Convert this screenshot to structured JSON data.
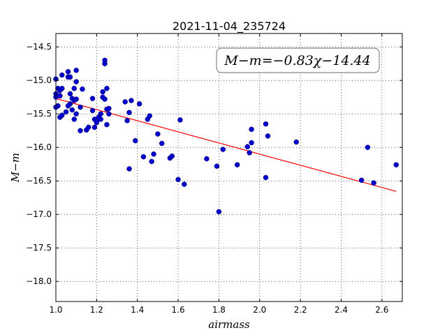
{
  "chart_data": {
    "type": "scatter",
    "title": "2021-11-04_235724",
    "xlabel": "airmass",
    "ylabel": "M−m",
    "xlim": [
      1.0,
      2.7
    ],
    "ylim": [
      -18.3,
      -14.3
    ],
    "y_inverted": true,
    "grid": true,
    "x_ticks": [
      1.0,
      1.2,
      1.4,
      1.6,
      1.8,
      2.0,
      2.2,
      2.4,
      2.6
    ],
    "x_tick_labels": [
      "1.0",
      "1.2",
      "1.4",
      "1.6",
      "1.8",
      "2.0",
      "2.2",
      "2.4",
      "2.6"
    ],
    "y_ticks": [
      -14.5,
      -15.0,
      -15.5,
      -16.0,
      -16.5,
      -17.0,
      -17.5,
      -18.0
    ],
    "y_tick_labels": [
      "−14.5",
      "−15.0",
      "−15.5",
      "−16.0",
      "−16.5",
      "−17.0",
      "−17.5",
      "−18.0"
    ],
    "annotation": "M−m=−0.83χ−14.44",
    "fit_line": {
      "slope": -0.83,
      "intercept": -14.44,
      "x_range": [
        1.0,
        2.67
      ],
      "color": "#ff0000"
    },
    "point_color": "#0000cc",
    "points": [
      [
        1.0,
        -14.98
      ],
      [
        1.01,
        -15.12
      ],
      [
        1.0,
        -15.2
      ],
      [
        1.0,
        -15.25
      ],
      [
        1.01,
        -15.38
      ],
      [
        1.0,
        -15.4
      ],
      [
        1.02,
        -15.15
      ],
      [
        1.03,
        -15.12
      ],
      [
        1.02,
        -15.23
      ],
      [
        1.03,
        -15.52
      ],
      [
        1.02,
        -15.55
      ],
      [
        1.03,
        -14.92
      ],
      [
        1.06,
        -14.87
      ],
      [
        1.06,
        -14.95
      ],
      [
        1.07,
        -14.95
      ],
      [
        1.07,
        -15.2
      ],
      [
        1.08,
        -15.27
      ],
      [
        1.09,
        -15.3
      ],
      [
        1.07,
        -15.35
      ],
      [
        1.06,
        -15.38
      ],
      [
        1.05,
        -15.47
      ],
      [
        1.08,
        -15.44
      ],
      [
        1.09,
        -15.58
      ],
      [
        1.09,
        -15.12
      ],
      [
        1.1,
        -14.85
      ],
      [
        1.1,
        -15.02
      ],
      [
        1.1,
        -15.28
      ],
      [
        1.1,
        -15.5
      ],
      [
        1.12,
        -15.4
      ],
      [
        1.13,
        -15.13
      ],
      [
        1.12,
        -15.75
      ],
      [
        1.15,
        -15.74
      ],
      [
        1.16,
        -15.7
      ],
      [
        1.18,
        -15.45
      ],
      [
        1.18,
        -15.27
      ],
      [
        1.19,
        -15.58
      ],
      [
        1.2,
        -15.63
      ],
      [
        1.19,
        -15.7
      ],
      [
        1.2,
        -15.62
      ],
      [
        1.21,
        -15.55
      ],
      [
        1.22,
        -15.58
      ],
      [
        1.22,
        -15.5
      ],
      [
        1.23,
        -15.17
      ],
      [
        1.23,
        -15.25
      ],
      [
        1.24,
        -15.28
      ],
      [
        1.24,
        -14.7
      ],
      [
        1.24,
        -14.75
      ],
      [
        1.25,
        -15.12
      ],
      [
        1.25,
        -15.43
      ],
      [
        1.26,
        -15.42
      ],
      [
        1.25,
        -15.66
      ],
      [
        1.26,
        -15.5
      ],
      [
        1.34,
        -15.32
      ],
      [
        1.35,
        -15.6
      ],
      [
        1.37,
        -15.3
      ],
      [
        1.36,
        -15.48
      ],
      [
        1.36,
        -16.32
      ],
      [
        1.39,
        -15.9
      ],
      [
        1.41,
        -15.35
      ],
      [
        1.43,
        -16.14
      ],
      [
        1.45,
        -15.58
      ],
      [
        1.46,
        -15.53
      ],
      [
        1.47,
        -16.21
      ],
      [
        1.48,
        -16.1
      ],
      [
        1.5,
        -15.8
      ],
      [
        1.52,
        -15.94
      ],
      [
        1.56,
        -16.16
      ],
      [
        1.57,
        -16.13
      ],
      [
        1.6,
        -16.48
      ],
      [
        1.61,
        -15.59
      ],
      [
        1.63,
        -16.55
      ],
      [
        1.74,
        -16.17
      ],
      [
        1.79,
        -16.28
      ],
      [
        1.8,
        -16.96
      ],
      [
        1.82,
        -16.03
      ],
      [
        1.89,
        -16.26
      ],
      [
        1.94,
        -15.99
      ],
      [
        1.95,
        -16.08
      ],
      [
        1.96,
        -15.93
      ],
      [
        1.96,
        -15.73
      ],
      [
        2.03,
        -15.65
      ],
      [
        2.04,
        -15.83
      ],
      [
        2.03,
        -16.45
      ],
      [
        2.18,
        -15.92
      ],
      [
        2.5,
        -16.49
      ],
      [
        2.53,
        -16.0
      ],
      [
        2.56,
        -16.53
      ],
      [
        2.67,
        -16.26
      ]
    ]
  }
}
